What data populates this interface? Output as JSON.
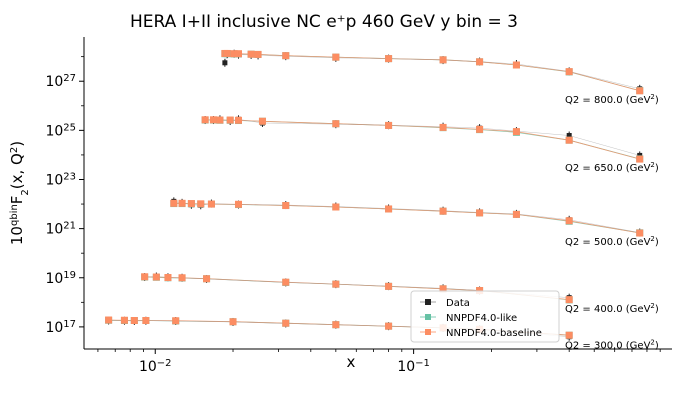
{
  "chart_data": {
    "type": "scatter",
    "title": "HERA I+II inclusive NC e⁺p 460 GeV y bin = 3",
    "xlabel": "x",
    "ylabel": "10^{qbin}F₂(x, Q²)",
    "x_scale": "log",
    "y_scale": "log",
    "xlim": [
      0.0053,
      1.0
    ],
    "ylim_log10": [
      16.1,
      28.8
    ],
    "x_ticks": [
      {
        "value": 0.01,
        "label": "10",
        "exp": "−2"
      },
      {
        "value": 0.1,
        "label": "10",
        "exp": "−1"
      }
    ],
    "y_ticks": [
      {
        "value_log10": 17,
        "label": "10",
        "exp": "17"
      },
      {
        "value_log10": 19,
        "label": "10",
        "exp": "19"
      },
      {
        "value_log10": 21,
        "label": "10",
        "exp": "21"
      },
      {
        "value_log10": 23,
        "label": "10",
        "exp": "23"
      },
      {
        "value_log10": 25,
        "label": "10",
        "exp": "25"
      },
      {
        "value_log10": 27,
        "label": "10",
        "exp": "27"
      }
    ],
    "legend": {
      "placement": "lower-right",
      "entries": [
        {
          "name": "Data",
          "color": "#222222"
        },
        {
          "name": "NNPDF4.0-like",
          "color": "#66c2a5"
        },
        {
          "name": "NNPDF4.0-baseline",
          "color": "#fc8d62"
        }
      ]
    },
    "groups": [
      {
        "label": "Q2 = 300.0 (GeV",
        "label_exp": "2",
        "label_close": ")",
        "x": [
          0.0066,
          0.0076,
          0.0083,
          0.0092,
          0.012,
          0.02,
          0.032,
          0.05,
          0.08,
          0.13,
          0.18,
          0.4
        ],
        "data": [
          17.26,
          17.25,
          17.24,
          17.25,
          17.24,
          17.2,
          17.14,
          17.09,
          17.03,
          16.96,
          16.9,
          16.6
        ],
        "like": [
          17.27,
          17.26,
          17.26,
          17.26,
          17.24,
          17.21,
          17.15,
          17.09,
          17.03,
          16.96,
          16.9,
          16.66
        ],
        "baseline": [
          17.28,
          17.27,
          17.26,
          17.26,
          17.25,
          17.21,
          17.15,
          17.09,
          17.03,
          16.96,
          16.9,
          16.66
        ]
      },
      {
        "label": "Q2 = 400.0 (GeV",
        "label_exp": "2",
        "label_close": ")",
        "x": [
          0.0091,
          0.0101,
          0.0112,
          0.0127,
          0.0158,
          0.032,
          0.05,
          0.08,
          0.13,
          0.18,
          0.4
        ],
        "data": [
          19.03,
          19.05,
          19.02,
          19.0,
          18.95,
          18.81,
          18.74,
          18.66,
          18.57,
          18.48,
          18.19
        ],
        "like": [
          19.03,
          19.02,
          19.0,
          18.99,
          18.96,
          18.81,
          18.74,
          18.65,
          18.55,
          18.48,
          18.1
        ],
        "baseline": [
          19.04,
          19.03,
          19.01,
          19.0,
          18.96,
          18.82,
          18.74,
          18.65,
          18.55,
          18.48,
          18.11
        ]
      },
      {
        "label": "Q2 = 500.0 (GeV",
        "label_exp": "2",
        "label_close": ")",
        "x": [
          0.0118,
          0.0127,
          0.0138,
          0.015,
          0.0165,
          0.021,
          0.032,
          0.05,
          0.08,
          0.13,
          0.18,
          0.25,
          0.4,
          0.75
        ],
        "data": [
          22.11,
          22.05,
          21.97,
          21.95,
          22.02,
          21.98,
          21.96,
          21.9,
          21.82,
          21.73,
          21.66,
          21.6,
          21.36,
          20.84
        ],
        "like": [
          22.02,
          22.02,
          22.01,
          22.0,
          22.0,
          21.98,
          21.94,
          21.88,
          21.8,
          21.71,
          21.64,
          21.58,
          21.3,
          20.83
        ],
        "baseline": [
          22.03,
          22.03,
          22.02,
          22.01,
          22.0,
          21.99,
          21.94,
          21.88,
          21.8,
          21.71,
          21.64,
          21.58,
          21.32,
          20.82
        ]
      },
      {
        "label": "Q2 = 650.0 (GeV",
        "label_exp": "2",
        "label_close": ")",
        "x": [
          0.0156,
          0.0168,
          0.0178,
          0.0195,
          0.021,
          0.026,
          0.05,
          0.08,
          0.13,
          0.18,
          0.25,
          0.4,
          0.75
        ],
        "data": [
          25.42,
          25.42,
          25.45,
          25.38,
          25.45,
          25.3,
          25.25,
          25.21,
          25.15,
          25.09,
          24.97,
          24.79,
          23.98
        ],
        "like": [
          25.42,
          25.42,
          25.41,
          25.41,
          25.4,
          25.37,
          25.27,
          25.2,
          25.11,
          25.03,
          24.92,
          24.6,
          23.84
        ],
        "baseline": [
          25.43,
          25.43,
          25.42,
          25.42,
          25.41,
          25.37,
          25.27,
          25.2,
          25.12,
          25.04,
          24.95,
          24.6,
          23.83
        ]
      },
      {
        "label": "Q2 = 800.0 (GeV",
        "label_exp": "2",
        "label_close": ")",
        "x": [
          0.0186,
          0.019,
          0.0202,
          0.021,
          0.0235,
          0.025,
          0.032,
          0.05,
          0.08,
          0.13,
          0.18,
          0.25,
          0.4,
          0.75
        ],
        "data": [
          27.75,
          28.1,
          28.12,
          28.08,
          28.07,
          28.05,
          28.02,
          27.95,
          27.92,
          27.86,
          27.8,
          27.7,
          27.4,
          26.69
        ],
        "like": [
          28.12,
          28.12,
          28.11,
          28.11,
          28.1,
          28.09,
          28.04,
          27.98,
          27.92,
          27.87,
          27.79,
          27.66,
          27.38,
          26.62
        ],
        "baseline": [
          28.13,
          28.13,
          28.12,
          28.12,
          28.1,
          28.09,
          28.04,
          27.98,
          27.92,
          27.87,
          27.79,
          27.66,
          27.39,
          26.61
        ]
      }
    ]
  }
}
